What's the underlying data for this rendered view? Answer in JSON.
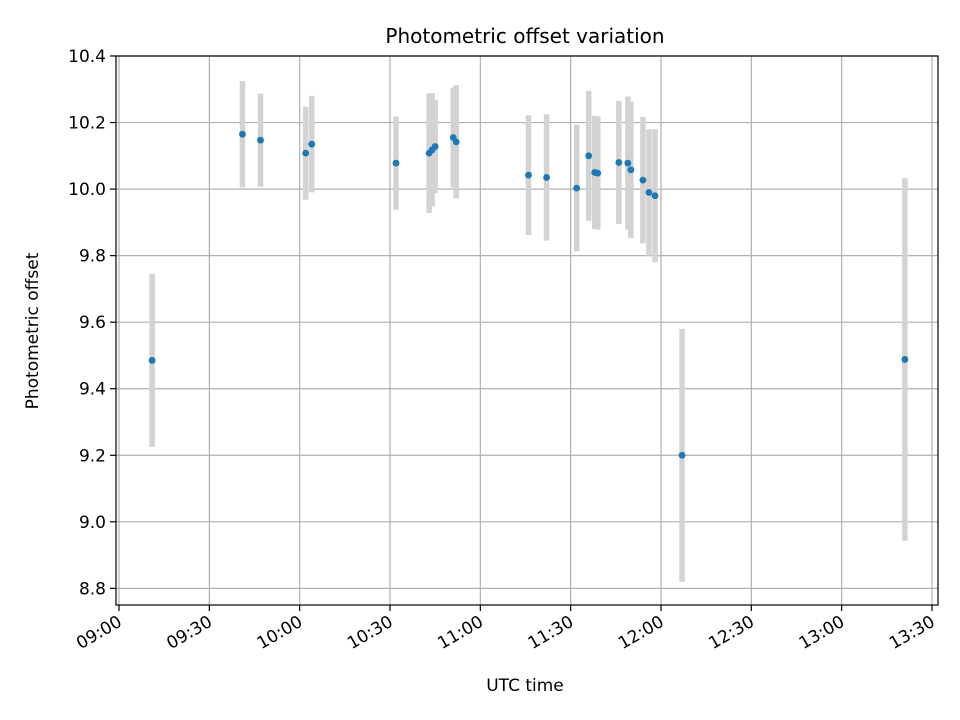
{
  "chart_data": {
    "type": "scatter",
    "title": "Photometric offset variation",
    "xlabel": "UTC time",
    "ylabel": "Photometric offset",
    "x_ticks": [
      "09:00",
      "09:30",
      "10:00",
      "10:30",
      "11:00",
      "11:30",
      "12:00",
      "12:30",
      "13:00",
      "13:30"
    ],
    "y_ticks": [
      "8.8",
      "9.0",
      "9.2",
      "9.4",
      "9.6",
      "9.8",
      "10.0",
      "10.2",
      "10.4"
    ],
    "xlim": [
      "08:59",
      "13:32"
    ],
    "ylim": [
      8.75,
      10.4
    ],
    "grid": true,
    "colors": {
      "point": "#1f77b4",
      "errorbar": "#d3d3d3",
      "grid": "#b0b0b0"
    },
    "series": [
      {
        "points": [
          {
            "x": "09:11",
            "y": 9.485,
            "yerr": 0.26
          },
          {
            "x": "09:41",
            "y": 10.165,
            "yerr": 0.16
          },
          {
            "x": "09:47",
            "y": 10.147,
            "yerr": 0.14
          },
          {
            "x": "10:02",
            "y": 10.108,
            "yerr": 0.14
          },
          {
            "x": "10:04",
            "y": 10.135,
            "yerr": 0.145
          },
          {
            "x": "10:32",
            "y": 10.078,
            "yerr": 0.14
          },
          {
            "x": "10:43",
            "y": 10.108,
            "yerr": 0.18
          },
          {
            "x": "10:44",
            "y": 10.118,
            "yerr": 0.17
          },
          {
            "x": "10:45",
            "y": 10.128,
            "yerr": 0.14
          },
          {
            "x": "10:51",
            "y": 10.155,
            "yerr": 0.15
          },
          {
            "x": "10:52",
            "y": 10.142,
            "yerr": 0.17
          },
          {
            "x": "11:16",
            "y": 10.042,
            "yerr": 0.18
          },
          {
            "x": "11:22",
            "y": 10.035,
            "yerr": 0.19
          },
          {
            "x": "11:32",
            "y": 10.003,
            "yerr": 0.19
          },
          {
            "x": "11:36",
            "y": 10.1,
            "yerr": 0.195
          },
          {
            "x": "11:38",
            "y": 10.05,
            "yerr": 0.17
          },
          {
            "x": "11:39",
            "y": 10.048,
            "yerr": 0.17
          },
          {
            "x": "11:46",
            "y": 10.08,
            "yerr": 0.185
          },
          {
            "x": "11:49",
            "y": 10.078,
            "yerr": 0.2
          },
          {
            "x": "11:50",
            "y": 10.058,
            "yerr": 0.205
          },
          {
            "x": "11:54",
            "y": 10.027,
            "yerr": 0.19
          },
          {
            "x": "11:56",
            "y": 9.99,
            "yerr": 0.19
          },
          {
            "x": "11:58",
            "y": 9.98,
            "yerr": 0.2
          },
          {
            "x": "12:07",
            "y": 9.2,
            "yerr": 0.38
          },
          {
            "x": "13:21",
            "y": 9.488,
            "yerr": 0.545
          }
        ]
      }
    ]
  }
}
